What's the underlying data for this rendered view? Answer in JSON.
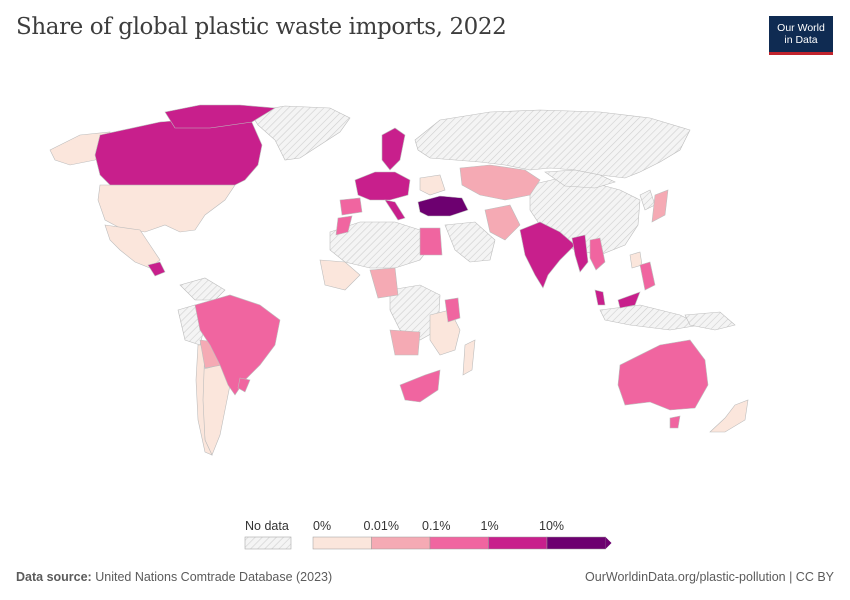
{
  "title": "Share of global plastic waste imports, 2022",
  "logo": {
    "line1": "Our World",
    "line2": "in Data"
  },
  "legend": {
    "no_data_label": "No data",
    "tick_labels": [
      "0%",
      "0.01%",
      "0.1%",
      "1%",
      "10%"
    ],
    "colors": [
      "#fbe6dc",
      "#f5aab4",
      "#f065a0",
      "#c81f8c",
      "#6d0070"
    ],
    "no_data_color": "#e8e8e8"
  },
  "source": {
    "label": "Data source:",
    "text": "United Nations Comtrade Database (2023)"
  },
  "url": "OurWorldinData.org/plastic-pollution | CC BY",
  "map_data": {
    "regions": [
      {
        "name": "Canada",
        "bin": 3
      },
      {
        "name": "United States",
        "bin": 0
      },
      {
        "name": "Mexico",
        "bin": 0
      },
      {
        "name": "Brazil",
        "bin": 2
      },
      {
        "name": "Argentina",
        "bin": 0
      },
      {
        "name": "India",
        "bin": 3
      },
      {
        "name": "Turkey",
        "bin": 4
      },
      {
        "name": "Australia",
        "bin": 2
      },
      {
        "name": "Malaysia",
        "bin": 3
      },
      {
        "name": "Vietnam",
        "bin": 2
      },
      {
        "name": "Kazakhstan",
        "bin": 1
      },
      {
        "name": "Egypt",
        "bin": 2
      },
      {
        "name": "South Africa",
        "bin": 2
      },
      {
        "name": "Russia",
        "bin": null
      },
      {
        "name": "China",
        "bin": null
      },
      {
        "name": "Greenland",
        "bin": null
      }
    ]
  }
}
